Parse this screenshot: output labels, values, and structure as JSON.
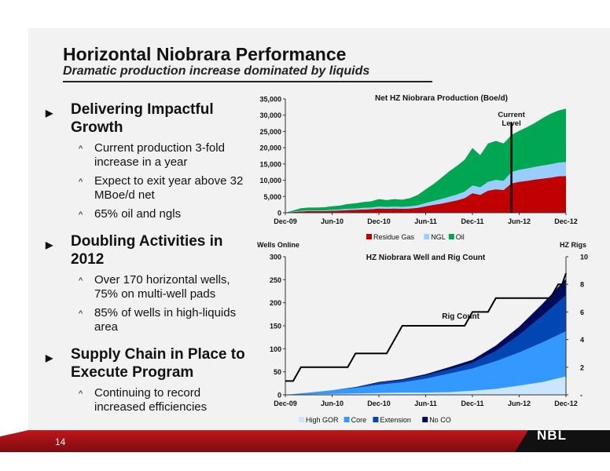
{
  "slide": {
    "title": "Horizontal Niobrara Performance",
    "subtitle": "Dramatic production increase dominated by liquids",
    "page_number": "14",
    "logo_text": "NBL"
  },
  "bullets": [
    {
      "heading": "Delivering Impactful Growth",
      "items": [
        "Current production 3-fold increase in a year",
        "Expect to exit year above 32 MBoe/d net",
        "65% oil and ngls"
      ]
    },
    {
      "heading": "Doubling Activities in 2012",
      "items": [
        "Over 170 horizontal wells, 75% on multi-well pads",
        "85% of wells in high-liquids area"
      ]
    },
    {
      "heading": "Supply Chain in Place to Execute Program",
      "items": [
        "Continuing to record increased efficiencies"
      ]
    }
  ],
  "chart_data": [
    {
      "type": "area",
      "stacked": true,
      "title": "Net HZ Niobrara Production (Boe/d)",
      "x_tick_labels": [
        "Dec-09",
        "Jun-10",
        "Dec-10",
        "Jun-11",
        "Dec-11",
        "Jun-12",
        "Dec-12"
      ],
      "ylim": [
        0,
        35000
      ],
      "y_tick_labels": [
        "0",
        "5,000",
        "10,000",
        "15,000",
        "20,000",
        "25,000",
        "30,000",
        "35,000"
      ],
      "months_from_dec09": [
        0,
        1,
        2,
        3,
        4,
        5,
        6,
        7,
        8,
        9,
        10,
        11,
        12,
        13,
        14,
        15,
        16,
        17,
        18,
        19,
        20,
        21,
        22,
        23,
        24,
        25,
        26,
        27,
        28,
        29,
        30,
        31,
        32,
        33,
        34,
        35,
        36
      ],
      "series": [
        {
          "name": "Residue Gas",
          "color": "#c00000",
          "values": [
            0,
            200,
            400,
            500,
            500,
            500,
            600,
            700,
            800,
            900,
            1000,
            1100,
            1300,
            1200,
            1300,
            1200,
            1300,
            1500,
            2000,
            2400,
            2800,
            3300,
            3800,
            4500,
            6000,
            5500,
            6800,
            7200,
            7000,
            9000,
            9500,
            9800,
            10200,
            10500,
            10800,
            11200,
            11300
          ]
        },
        {
          "name": "NGL",
          "color": "#99ccff",
          "values": [
            0,
            100,
            200,
            200,
            200,
            200,
            300,
            300,
            400,
            400,
            500,
            500,
            600,
            600,
            600,
            600,
            700,
            800,
            1000,
            1200,
            1400,
            1600,
            1800,
            2000,
            2400,
            2300,
            2700,
            2900,
            2800,
            3500,
            3700,
            3800,
            3900,
            4000,
            4100,
            4200,
            4300
          ]
        },
        {
          "name": "Oil",
          "color": "#00a651",
          "values": [
            0,
            400,
            800,
            900,
            900,
            1000,
            1100,
            1200,
            1500,
            1600,
            1800,
            1900,
            2300,
            2100,
            2300,
            2200,
            2500,
            3200,
            4200,
            5200,
            6500,
            7800,
            8800,
            9800,
            11500,
            9900,
            11800,
            12000,
            11500,
            11400,
            12000,
            12700,
            13500,
            14600,
            15500,
            16000,
            16400
          ]
        }
      ],
      "annotation": "Current Level",
      "annotation_x": 29
    },
    {
      "type": "area",
      "stacked": true,
      "title": "HZ Niobrara Well and Rig Count",
      "left_axis_label": "Wells Online",
      "right_axis_label": "HZ Rigs",
      "x_tick_labels": [
        "Dec-09",
        "Jun-10",
        "Dec-10",
        "Jun-11",
        "Dec-11",
        "Jun-12",
        "Dec-12"
      ],
      "ylim": [
        0,
        300
      ],
      "y_tick_labels": [
        "0",
        "50",
        "100",
        "150",
        "200",
        "250",
        "300"
      ],
      "y2lim": [
        0,
        10
      ],
      "y2_tick_labels": [
        "-",
        "2",
        "4",
        "6",
        "8",
        "10"
      ],
      "months_from_dec09": [
        0,
        3,
        6,
        9,
        12,
        15,
        18,
        21,
        24,
        27,
        30,
        33,
        36
      ],
      "series": [
        {
          "name": "High GOR",
          "color": "#cce5ff",
          "values": [
            0,
            1,
            2,
            3,
            4,
            5,
            5,
            6,
            9,
            13,
            20,
            28,
            40
          ]
        },
        {
          "name": "Core",
          "color": "#3399ff",
          "values": [
            0,
            4,
            8,
            12,
            18,
            22,
            30,
            40,
            48,
            60,
            72,
            86,
            98
          ]
        },
        {
          "name": "Extension",
          "color": "#0047b3",
          "values": [
            0,
            0,
            0,
            2,
            4,
            5,
            7,
            9,
            12,
            22,
            38,
            58,
            78
          ]
        },
        {
          "name": "No CO",
          "color": "#000b5c",
          "values": [
            0,
            0,
            0,
            0,
            2,
            2,
            3,
            5,
            7,
            12,
            18,
            26,
            36
          ]
        }
      ],
      "rig_count": {
        "name": "Rig Count",
        "months": [
          0,
          1,
          2,
          5,
          6,
          8,
          9,
          10,
          12,
          13,
          15,
          16,
          20,
          21,
          22,
          23,
          24,
          26,
          27,
          29,
          31,
          32,
          34,
          34.5,
          35,
          35.5,
          36
        ],
        "values": [
          1,
          1,
          2,
          2,
          2,
          2,
          3,
          3,
          3,
          3,
          5,
          5,
          5,
          5,
          5,
          5,
          6,
          6,
          7,
          7,
          7,
          7,
          7,
          7.5,
          8,
          8,
          8.8
        ]
      }
    }
  ]
}
